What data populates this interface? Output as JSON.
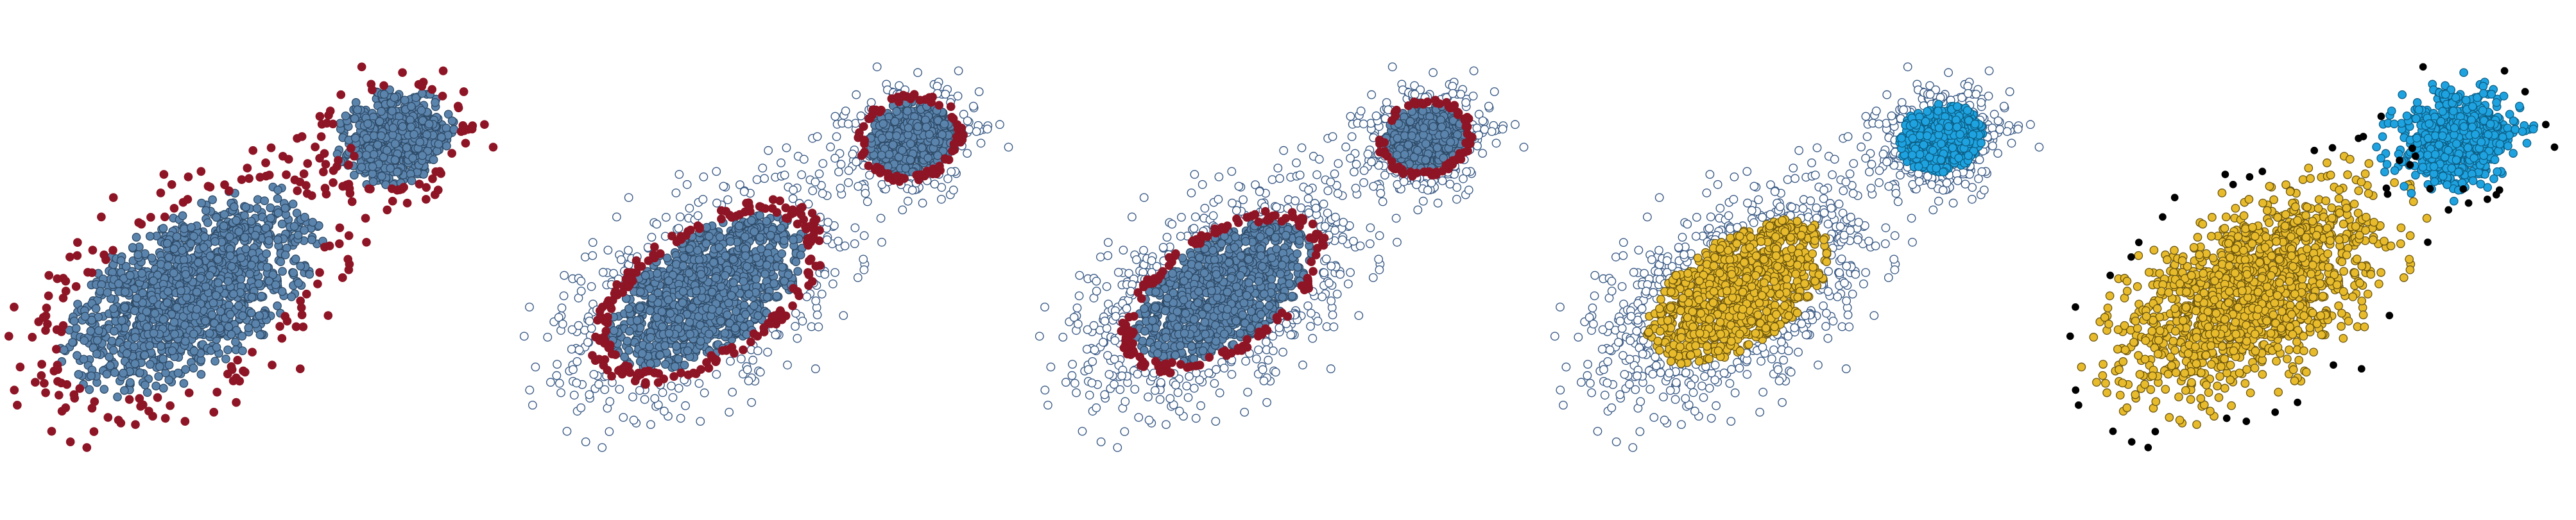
{
  "colors": {
    "core": "#5b84ad",
    "core_edge": "#2e4a66",
    "boundary": "#8e1525",
    "hollow_edge": "#3b5b86",
    "cluster_a": "#e7bb2b",
    "cluster_a_edge": "#6b5510",
    "cluster_b": "#1ea3e0",
    "cluster_b_edge": "#0d5f86",
    "noise": "#000000"
  },
  "panels": [
    {
      "id": "panel-1",
      "style": "core_with_boundary_filled"
    },
    {
      "id": "panel-2",
      "style": "core_boundary_with_hollow_periphery"
    },
    {
      "id": "panel-3",
      "style": "shrunken_core_boundary_with_hollow_periphery"
    },
    {
      "id": "panel-4",
      "style": "clusters_with_hollow_periphery"
    },
    {
      "id": "panel-5",
      "style": "final_clusters_with_noise"
    }
  ],
  "data_model": {
    "blob_large": {
      "center": [
        0,
        0
      ],
      "count": 1500
    },
    "blob_small": {
      "center": [
        1,
        1
      ],
      "count": 700
    }
  }
}
